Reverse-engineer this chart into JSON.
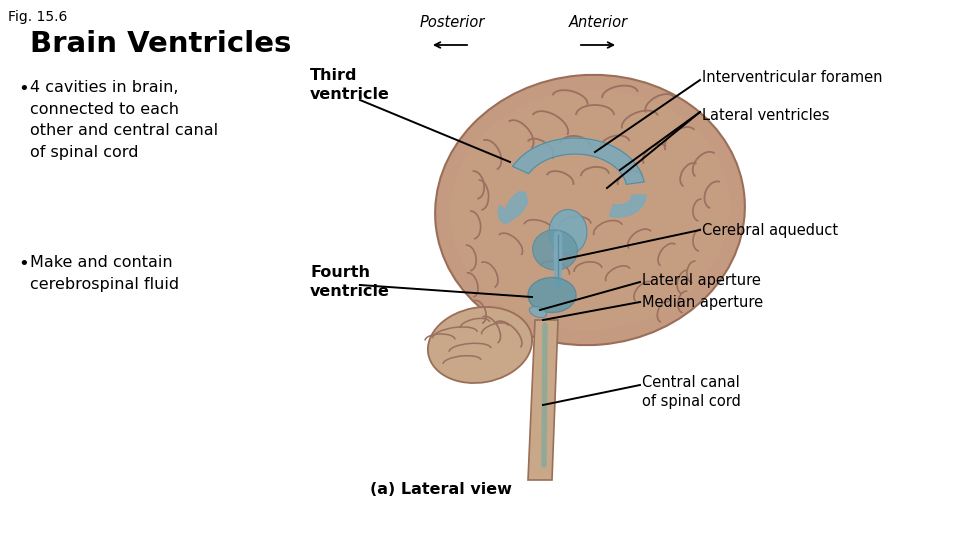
{
  "fig_label": "Fig. 15.6",
  "title": "Brain Ventricles",
  "bullets": [
    "4 cavities in brain,\nconnected to each\nother and central canal\nof spinal cord",
    "Make and contain\ncerebrospinal fluid"
  ],
  "bg_color": "#ffffff",
  "title_color": "#000000",
  "label_color": "#000000",
  "fig_label_color": "#000000",
  "posterior_label": "Posterior",
  "anterior_label": "Anterior",
  "lateral_view_label": "(a) Lateral view",
  "brain_color": "#c49a80",
  "brain_edge": "#9a6e58",
  "vent_color": "#7aaabb",
  "vent_dark": "#5a8a9a",
  "stem_color": "#c8a888",
  "cereb_color": "#c8a888",
  "canal_color": "#8aaa99"
}
